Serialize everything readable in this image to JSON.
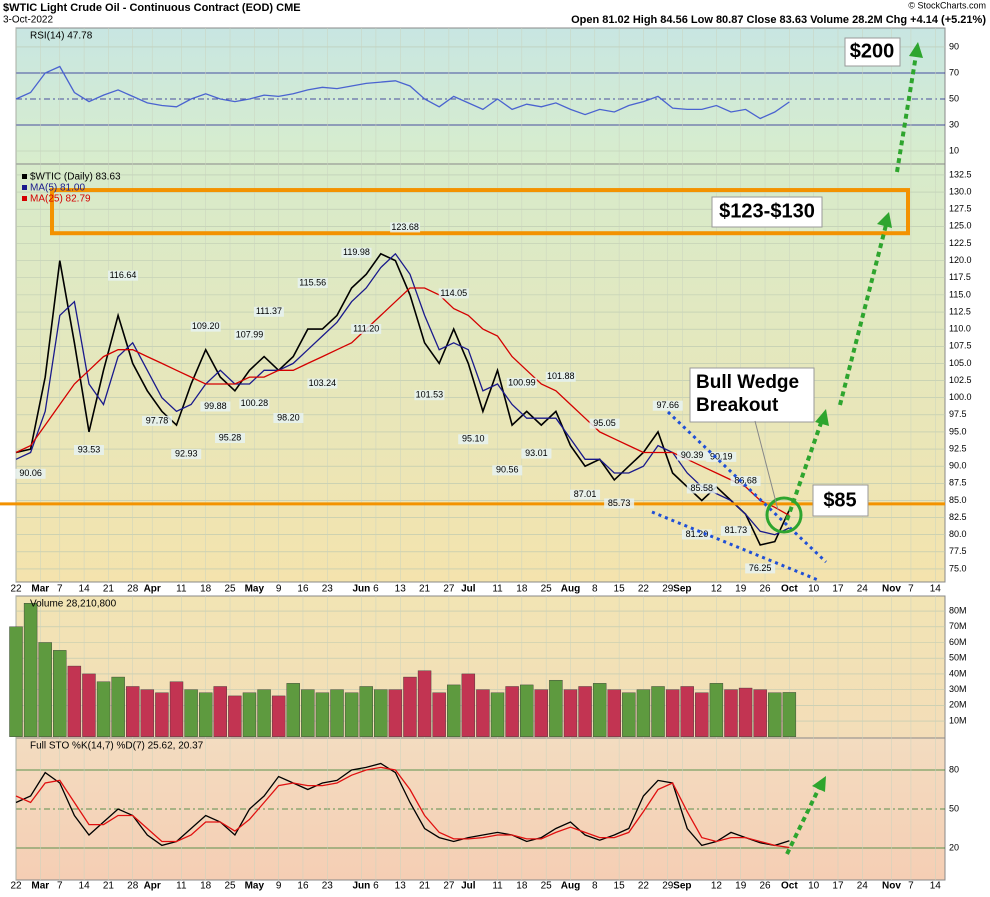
{
  "header": {
    "title": "$WTIC Light Crude Oil - Continuous Contract (EOD) CME",
    "date": "3-Oct-2022",
    "quote": "Open 81.02  High 84.56  Low 80.87  Close 83.63  Volume 28.2M  Chg +4.14 (+5.21%)",
    "credit": "© StockCharts.com"
  },
  "chart_data": [
    {
      "type": "line",
      "title": "RSI(14) 47.78",
      "ylim": [
        0,
        104.6
      ],
      "yticks": [
        10,
        30,
        50,
        70,
        90
      ],
      "x": [
        0,
        3,
        6,
        9,
        12,
        15,
        18,
        21,
        24,
        27,
        30,
        33,
        36,
        39,
        42,
        45,
        48,
        51,
        54,
        57,
        60,
        63,
        66,
        69,
        72,
        75,
        78,
        81,
        84,
        87,
        90,
        93,
        96,
        99,
        102,
        105,
        108,
        111,
        114,
        117,
        120,
        123,
        126,
        129,
        132,
        135,
        138,
        141,
        144,
        147,
        150,
        153,
        156,
        159
      ],
      "xlim": [
        0,
        191
      ],
      "series": [
        {
          "name": "RSI(14)",
          "color": "#4a63d0",
          "values": [
            50,
            55,
            70,
            75,
            55,
            48,
            53,
            57,
            52,
            47,
            45,
            44,
            50,
            54,
            50,
            48,
            50,
            53,
            52,
            54,
            57,
            59,
            58,
            60,
            62,
            63,
            64,
            60,
            50,
            44,
            52,
            47,
            42,
            50,
            42,
            46,
            44,
            47,
            42,
            38,
            42,
            40,
            45,
            48,
            52,
            43,
            42,
            42,
            45,
            40,
            42,
            35,
            40,
            47.78
          ]
        }
      ]
    },
    {
      "type": "line",
      "ylim": [
        73.1,
        134.1
      ],
      "xlim": [
        0,
        191
      ],
      "yticks": [
        {
          "value": 75,
          "label": "75.0"
        },
        77.5,
        {
          "value": 80,
          "label": "80.0"
        },
        82.5,
        {
          "value": 85,
          "label": "85.0"
        },
        87.5,
        {
          "value": 90,
          "label": "90.0"
        },
        92.5,
        {
          "value": 95,
          "label": "95.0"
        },
        97.5,
        {
          "value": 100,
          "label": "100.0"
        },
        102.5,
        {
          "value": 105,
          "label": "105.0"
        },
        107.5,
        {
          "value": 110,
          "label": "110.0"
        },
        112.5,
        {
          "value": 115,
          "label": "115.0"
        },
        117.5,
        {
          "value": 120,
          "label": "120.0"
        },
        122.5,
        {
          "value": 125,
          "label": "125.0"
        },
        127.5,
        {
          "value": 130,
          "label": "130.0"
        },
        132.5
      ],
      "xticks": [
        {
          "value": 0,
          "label": "22"
        },
        {
          "value": 5,
          "label": "Mar"
        },
        {
          "value": 9,
          "label": "7"
        },
        {
          "value": 14,
          "label": "14"
        },
        {
          "value": 19,
          "label": "21"
        },
        {
          "value": 24,
          "label": "28"
        },
        {
          "value": 28,
          "label": "Apr"
        },
        {
          "value": 34,
          "label": "11"
        },
        {
          "value": 39,
          "label": "18"
        },
        {
          "value": 44,
          "label": "25"
        },
        {
          "value": 49,
          "label": "May"
        },
        {
          "value": 54,
          "label": "9"
        },
        {
          "value": 59,
          "label": "16"
        },
        {
          "value": 64,
          "label": "23"
        },
        {
          "value": 71,
          "label": "Jun"
        },
        {
          "value": 74,
          "label": "6"
        },
        {
          "value": 79,
          "label": "13"
        },
        {
          "value": 84,
          "label": "21"
        },
        {
          "value": 89,
          "label": "27"
        },
        {
          "value": 93,
          "label": "Jul"
        },
        {
          "value": 99,
          "label": "11"
        },
        {
          "value": 104,
          "label": "18"
        },
        {
          "value": 109,
          "label": "25"
        },
        {
          "value": 114,
          "label": "Aug"
        },
        {
          "value": 119,
          "label": "8"
        },
        {
          "value": 124,
          "label": "15"
        },
        {
          "value": 129,
          "label": "22"
        },
        {
          "value": 134,
          "label": "29"
        },
        {
          "value": 137,
          "label": "Sep"
        },
        {
          "value": 144,
          "label": "12"
        },
        {
          "value": 149,
          "label": "19"
        },
        {
          "value": 154,
          "label": "26"
        },
        {
          "value": 159,
          "label": "Oct"
        },
        {
          "value": 164,
          "label": "10"
        },
        {
          "value": 169,
          "label": "17"
        },
        {
          "value": 174,
          "label": "24"
        },
        {
          "value": 180,
          "label": "Nov"
        },
        {
          "value": 184,
          "label": "7"
        },
        {
          "value": 189,
          "label": "14"
        }
      ],
      "x": [
        0,
        3,
        6,
        9,
        12,
        15,
        18,
        21,
        24,
        27,
        30,
        33,
        36,
        39,
        42,
        45,
        48,
        51,
        54,
        57,
        60,
        63,
        66,
        69,
        72,
        75,
        78,
        81,
        84,
        87,
        90,
        93,
        96,
        99,
        102,
        105,
        108,
        111,
        114,
        117,
        120,
        123,
        126,
        129,
        132,
        135,
        138,
        141,
        144,
        147,
        150,
        153,
        156,
        159
      ],
      "series": [
        {
          "name": "$WTIC (Daily) 83.63",
          "color": "#000000",
          "values": [
            92,
            92.5,
            103,
            120,
            108,
            95,
            104,
            112,
            105,
            101,
            98,
            96,
            102,
            107,
            103,
            101,
            104,
            106,
            104,
            106,
            110,
            110,
            112,
            116,
            118,
            121,
            120,
            115,
            108,
            105,
            110,
            105,
            98,
            104,
            96,
            98,
            96,
            98,
            93,
            90,
            91,
            88,
            90,
            92,
            95,
            89,
            87,
            85,
            87,
            85,
            83,
            78.5,
            79,
            83.63
          ]
        },
        {
          "name": "MA(5) 81.00",
          "color": "#1a1a8c",
          "values": [
            91,
            92,
            98,
            112,
            114,
            102,
            99,
            106,
            108,
            104,
            100,
            98,
            99,
            102,
            104,
            102,
            102,
            104,
            104,
            105,
            107,
            109,
            111,
            114,
            116,
            119,
            121,
            118,
            112,
            107,
            108,
            107,
            101,
            102,
            99,
            97,
            97,
            97,
            94,
            91,
            91,
            89,
            89,
            90,
            93,
            92,
            89,
            87,
            86,
            85,
            83,
            80.5,
            80,
            81
          ]
        },
        {
          "name": "MA(25) 82.79",
          "color": "#d40000",
          "values": [
            92,
            93,
            96,
            99,
            102,
            104,
            106,
            107,
            107,
            106,
            105,
            104,
            103,
            102,
            102,
            102,
            103,
            103,
            104,
            104,
            105,
            106,
            107,
            108,
            110,
            112,
            114,
            116,
            116,
            115,
            113,
            112,
            110,
            109,
            106,
            104,
            102,
            101,
            99,
            97,
            95,
            94,
            93,
            92,
            92,
            92,
            91,
            90,
            89,
            88,
            87,
            85,
            84,
            82.79
          ]
        }
      ],
      "peaks": {
        "x": [
          3,
          15,
          22,
          29,
          39,
          35,
          41,
          48,
          44,
          49,
          52,
          56,
          61,
          63,
          70,
          72,
          80,
          85,
          90,
          94,
          104,
          101,
          107,
          112,
          117,
          121,
          124,
          134,
          139,
          145,
          141,
          150,
          140,
          148,
          153
        ],
        "values": [
          90.06,
          93.53,
          116.64,
          97.78,
          109.2,
          92.93,
          99.88,
          107.99,
          95.28,
          100.28,
          111.37,
          98.2,
          115.56,
          103.24,
          119.98,
          111.2,
          123.68,
          101.53,
          114.05,
          95.1,
          100.99,
          90.56,
          93.01,
          101.88,
          87.01,
          95.05,
          85.73,
          97.66,
          90.39,
          90.19,
          85.58,
          86.68,
          81.2,
          81.73,
          76.25
        ],
        "value_labels": [
          "90.06",
          "93.53",
          "116.64",
          "97.78",
          "109.20",
          "92.93",
          "99.88",
          "107.99",
          "95.28",
          "100.28",
          "111.37",
          "98.20",
          "115.56",
          "103.24",
          "119.98",
          "111.20",
          "123.68",
          "101.53",
          "114.05",
          "95.10",
          "100.99",
          "90.56",
          "93.01",
          "101.88",
          "87.01",
          "95.05",
          "85.73",
          "97.66",
          "90.39",
          "90.19",
          "85.58",
          "86.68",
          "81.20",
          "81.73",
          "76.25"
        ]
      },
      "zone": [
        124,
        130.3
      ],
      "level": 84.5,
      "zone_color": "#f39200",
      "callouts": [
        "$200",
        "$123-$130",
        "$85",
        "Bull Wedge",
        "Breakout"
      ]
    },
    {
      "type": "bar",
      "title": "Volume 28,210,800",
      "ylim": [
        -0.8,
        89.6
      ],
      "xlim": [
        0,
        191
      ],
      "yticks": [
        {
          "value": 10,
          "label": "10M"
        },
        {
          "value": 20,
          "label": "20M"
        },
        {
          "value": 30,
          "label": "30M"
        },
        {
          "value": 40,
          "label": "40M"
        },
        {
          "value": 50,
          "label": "50M"
        },
        {
          "value": 60,
          "label": "60M"
        },
        {
          "value": 70,
          "label": "70M"
        },
        {
          "value": 80,
          "label": "80M"
        }
      ],
      "x": [
        0,
        3,
        6,
        9,
        12,
        15,
        18,
        21,
        24,
        27,
        30,
        33,
        36,
        39,
        42,
        45,
        48,
        51,
        54,
        57,
        60,
        63,
        66,
        69,
        72,
        75,
        78,
        81,
        84,
        87,
        90,
        93,
        96,
        99,
        102,
        105,
        108,
        111,
        114,
        117,
        120,
        123,
        126,
        129,
        132,
        135,
        138,
        141,
        144,
        147,
        150,
        153,
        156,
        159
      ],
      "up_color": "#5e9a3f",
      "down_color": "#c23452",
      "values": [
        70,
        85,
        60,
        55,
        45,
        40,
        35,
        38,
        32,
        30,
        28,
        35,
        30,
        28,
        32,
        26,
        28,
        30,
        26,
        34,
        30,
        28,
        30,
        28,
        32,
        30,
        30,
        38,
        42,
        28,
        33,
        40,
        30,
        28,
        32,
        33,
        30,
        36,
        30,
        32,
        34,
        30,
        28,
        30,
        32,
        30,
        32,
        28,
        34,
        30,
        31,
        30,
        28,
        28.21
      ]
    },
    {
      "type": "line",
      "title": "Full STO %K(14,7) %D(7) 25.62, 20.37",
      "ylim": [
        -4.6,
        104.6
      ],
      "yticks": [
        20,
        50,
        80
      ],
      "xlim": [
        0,
        191
      ],
      "xticks": [
        {
          "value": 0,
          "label": "22"
        },
        {
          "value": 5,
          "label": "Mar"
        },
        {
          "value": 9,
          "label": "7"
        },
        {
          "value": 14,
          "label": "14"
        },
        {
          "value": 19,
          "label": "21"
        },
        {
          "value": 24,
          "label": "28"
        },
        {
          "value": 28,
          "label": "Apr"
        },
        {
          "value": 34,
          "label": "11"
        },
        {
          "value": 39,
          "label": "18"
        },
        {
          "value": 44,
          "label": "25"
        },
        {
          "value": 49,
          "label": "May"
        },
        {
          "value": 54,
          "label": "9"
        },
        {
          "value": 59,
          "label": "16"
        },
        {
          "value": 64,
          "label": "23"
        },
        {
          "value": 71,
          "label": "Jun"
        },
        {
          "value": 74,
          "label": "6"
        },
        {
          "value": 79,
          "label": "13"
        },
        {
          "value": 84,
          "label": "21"
        },
        {
          "value": 89,
          "label": "27"
        },
        {
          "value": 93,
          "label": "Jul"
        },
        {
          "value": 99,
          "label": "11"
        },
        {
          "value": 104,
          "label": "18"
        },
        {
          "value": 109,
          "label": "25"
        },
        {
          "value": 114,
          "label": "Aug"
        },
        {
          "value": 119,
          "label": "8"
        },
        {
          "value": 124,
          "label": "15"
        },
        {
          "value": 129,
          "label": "22"
        },
        {
          "value": 134,
          "label": "29"
        },
        {
          "value": 137,
          "label": "Sep"
        },
        {
          "value": 144,
          "label": "12"
        },
        {
          "value": 149,
          "label": "19"
        },
        {
          "value": 154,
          "label": "26"
        },
        {
          "value": 159,
          "label": "Oct"
        },
        {
          "value": 164,
          "label": "10"
        },
        {
          "value": 169,
          "label": "17"
        },
        {
          "value": 174,
          "label": "24"
        },
        {
          "value": 180,
          "label": "Nov"
        },
        {
          "value": 184,
          "label": "7"
        },
        {
          "value": 189,
          "label": "14"
        }
      ],
      "x": [
        0,
        3,
        6,
        9,
        12,
        15,
        18,
        21,
        24,
        27,
        30,
        33,
        36,
        39,
        42,
        45,
        48,
        51,
        54,
        57,
        60,
        63,
        66,
        69,
        72,
        75,
        78,
        81,
        84,
        87,
        90,
        93,
        96,
        99,
        102,
        105,
        108,
        111,
        114,
        117,
        120,
        123,
        126,
        129,
        132,
        135,
        138,
        141,
        144,
        147,
        150,
        153,
        156,
        159
      ],
      "series": [
        {
          "name": "%K",
          "color": "#000000",
          "values": [
            55,
            60,
            78,
            70,
            45,
            30,
            40,
            50,
            45,
            30,
            22,
            25,
            35,
            45,
            40,
            30,
            50,
            60,
            75,
            70,
            65,
            70,
            72,
            80,
            82,
            85,
            78,
            55,
            35,
            28,
            25,
            28,
            30,
            32,
            30,
            25,
            28,
            35,
            40,
            30,
            26,
            30,
            35,
            60,
            72,
            70,
            35,
            22,
            25,
            32,
            28,
            24,
            22,
            25.62
          ]
        },
        {
          "name": "%D",
          "color": "#e01010",
          "values": [
            60,
            55,
            70,
            72,
            55,
            38,
            38,
            45,
            45,
            35,
            25,
            25,
            30,
            40,
            40,
            33,
            42,
            55,
            68,
            70,
            68,
            68,
            70,
            76,
            80,
            82,
            80,
            65,
            45,
            32,
            27,
            27,
            28,
            30,
            30,
            27,
            27,
            32,
            36,
            32,
            28,
            28,
            32,
            48,
            65,
            70,
            48,
            28,
            25,
            28,
            28,
            25,
            22,
            20.37
          ]
        }
      ]
    }
  ]
}
